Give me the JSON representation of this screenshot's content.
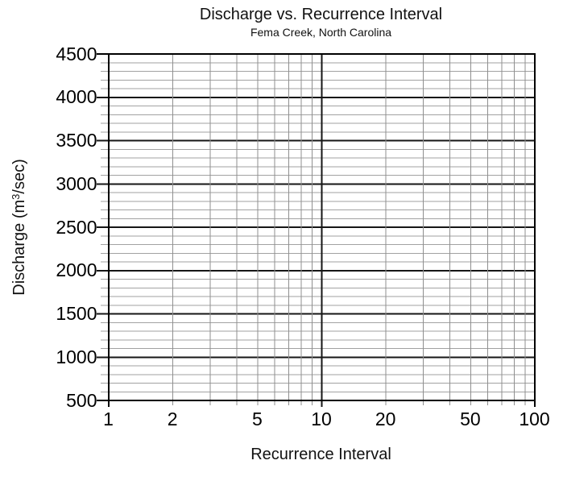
{
  "chart_data": {
    "type": "line",
    "title": "Discharge vs. Recurrence Interval",
    "subtitle": "Fema Creek, North Carolina",
    "xlabel": "Recurrence Interval",
    "ylabel": "Discharge (m3/sec)",
    "ylabel_parts": {
      "pre": "Discharge (m",
      "sup": "3",
      "post": "/sec)"
    },
    "x_scale": "log",
    "xlim": [
      1,
      100
    ],
    "ylim": [
      500,
      4500
    ],
    "x_tick_labels": [
      "1",
      "2",
      "5",
      "10",
      "20",
      "50",
      "100"
    ],
    "x_minor_ticks": [
      2,
      3,
      4,
      5,
      6,
      7,
      8,
      9,
      20,
      30,
      40,
      50,
      60,
      70,
      80,
      90
    ],
    "x_major_inner_ticks": [
      10
    ],
    "y_tick_labels": [
      "500",
      "1000",
      "1500",
      "2000",
      "2500",
      "3000",
      "3500",
      "4000",
      "4500"
    ],
    "y_major_step": 500,
    "y_minor_step": 100,
    "grid": true,
    "legend": null,
    "series": [],
    "colors": {
      "frame": "#000000",
      "major_grid": "#161616",
      "minor_grid_h": "#a2a2a2",
      "minor_grid_v": "#8f8f8f",
      "text": "#111111",
      "background": "#ffffff"
    }
  }
}
